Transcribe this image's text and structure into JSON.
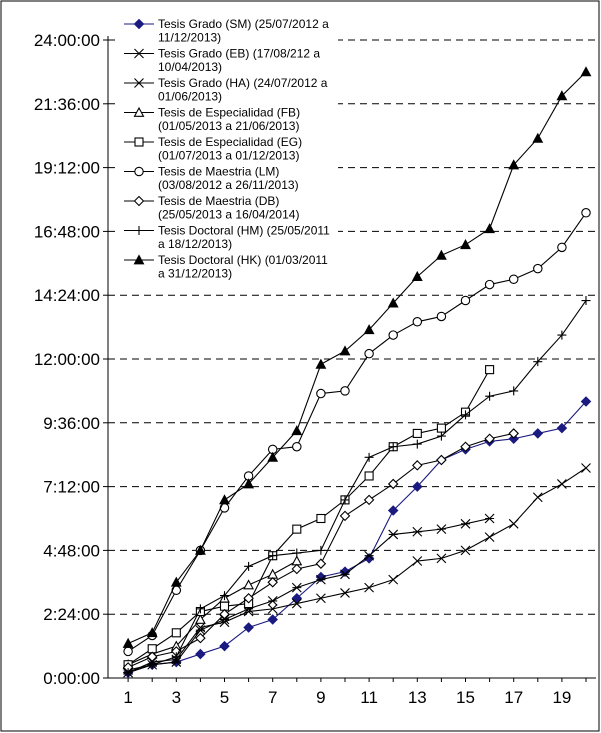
{
  "chart_data": {
    "type": "line",
    "x": [
      1,
      2,
      3,
      4,
      5,
      6,
      7,
      8,
      9,
      10,
      11,
      12,
      13,
      14,
      15,
      16,
      17,
      18,
      19,
      20
    ],
    "x_tick_labels": [
      "1",
      "3",
      "5",
      "7",
      "9",
      "11",
      "13",
      "15",
      "17",
      "19"
    ],
    "x_tick_values": [
      1,
      3,
      5,
      7,
      9,
      11,
      13,
      15,
      17,
      19
    ],
    "y_tick_labels": [
      "0:00:00",
      "2:24:00",
      "4:48:00",
      "7:12:00",
      "9:36:00",
      "12:00:00",
      "14:24:00",
      "16:48:00",
      "19:12:00",
      "21:36:00",
      "24:00:00"
    ],
    "y_unit": "hours",
    "ylim": [
      0,
      24
    ],
    "xlim": [
      0,
      21
    ],
    "grid": "horizontal-dashed",
    "legend_position": "top-left",
    "series": [
      {
        "name_lines": [
          "Tesis Grado (SM) (25/07/2012 a",
          "11/12/2013)"
        ],
        "marker": "diamond-filled",
        "color": "#1a1a80",
        "values": [
          0.2,
          0.5,
          0.6,
          0.9,
          1.2,
          1.9,
          2.2,
          3.0,
          3.8,
          4.0,
          4.5,
          6.3,
          7.2,
          8.2,
          8.6,
          8.9,
          9.0,
          9.2,
          9.4,
          10.4
        ]
      },
      {
        "name_lines": [
          "Tesis Grado (EB) (17/08/212 a",
          "10/04/2013)"
        ],
        "marker": "asterisk",
        "color": "#000000",
        "values": [
          0.3,
          0.5,
          0.6,
          1.8,
          2.2,
          2.6,
          2.9,
          3.4,
          3.7,
          3.9,
          4.6,
          5.4,
          5.5,
          5.6,
          5.8,
          6.0,
          null,
          null,
          null,
          null
        ]
      },
      {
        "name_lines": [
          "Tesis Grado (HA) (24/07/2012 a",
          "01/06/2013)"
        ],
        "marker": "x",
        "color": "#000000",
        "values": [
          0.2,
          0.6,
          0.7,
          1.9,
          2.1,
          2.5,
          2.6,
          2.8,
          3.0,
          3.2,
          3.4,
          3.7,
          4.4,
          4.5,
          4.8,
          5.3,
          5.8,
          6.8,
          7.3,
          7.9
        ]
      },
      {
        "name_lines": [
          "Tesis de Especialidad (FB)",
          "(01/05/2013 a 21/06/2013)"
        ],
        "marker": "triangle-open",
        "color": "#000000",
        "values": [
          0.5,
          0.9,
          1.2,
          2.2,
          3.0,
          3.5,
          3.9,
          4.4,
          null,
          null,
          null,
          null,
          null,
          null,
          null,
          null,
          null,
          null,
          null,
          null
        ]
      },
      {
        "name_lines": [
          "Tesis de Especialidad (EG)",
          "(01/07/2013 a 01/12/2013)"
        ],
        "marker": "square-open",
        "color": "#000000",
        "values": [
          0.5,
          1.1,
          1.7,
          2.5,
          2.7,
          2.8,
          4.6,
          5.6,
          6.0,
          6.7,
          7.6,
          8.7,
          9.2,
          9.4,
          10.0,
          11.6,
          null,
          null,
          null,
          null
        ]
      },
      {
        "name_lines": [
          "Tesis de Maestria (LM)",
          "(03/08/2012 a 26/11/2013)"
        ],
        "marker": "circle-open",
        "color": "#000000",
        "values": [
          1.0,
          1.6,
          3.3,
          4.8,
          6.4,
          7.6,
          8.6,
          8.7,
          10.7,
          10.8,
          12.2,
          12.9,
          13.4,
          13.6,
          14.2,
          14.8,
          15.0,
          15.4,
          16.2,
          17.5
        ]
      },
      {
        "name_lines": [
          "Tesis de Maestria (DB)",
          "(25/05/2013 a 16/04/2014)"
        ],
        "marker": "diamond-open",
        "color": "#000000",
        "values": [
          0.4,
          0.8,
          1.0,
          1.5,
          2.4,
          3.0,
          3.6,
          4.1,
          4.3,
          6.1,
          6.7,
          7.3,
          8.0,
          8.2,
          8.7,
          9.0,
          9.2,
          null,
          null,
          null
        ]
      },
      {
        "name_lines": [
          "Tesis Doctoral (HM) (25/05/2011",
          "a 18/12/2013)"
        ],
        "marker": "plus",
        "color": "#000000",
        "values": [
          0.2,
          0.5,
          0.8,
          2.6,
          3.1,
          4.2,
          4.6,
          4.7,
          4.8,
          6.7,
          8.3,
          8.7,
          8.8,
          9.1,
          9.9,
          10.6,
          10.8,
          11.9,
          12.9,
          14.2
        ]
      },
      {
        "name_lines": [
          "Tesis Doctoral (HK) (01/03/2011",
          "a 31/12/2013)"
        ],
        "marker": "triangle-filled",
        "color": "#000000",
        "values": [
          1.3,
          1.7,
          3.6,
          4.8,
          6.7,
          7.3,
          8.3,
          9.3,
          11.8,
          12.3,
          13.1,
          14.1,
          15.1,
          15.9,
          16.3,
          16.9,
          19.3,
          20.3,
          21.9,
          22.8
        ]
      }
    ]
  }
}
